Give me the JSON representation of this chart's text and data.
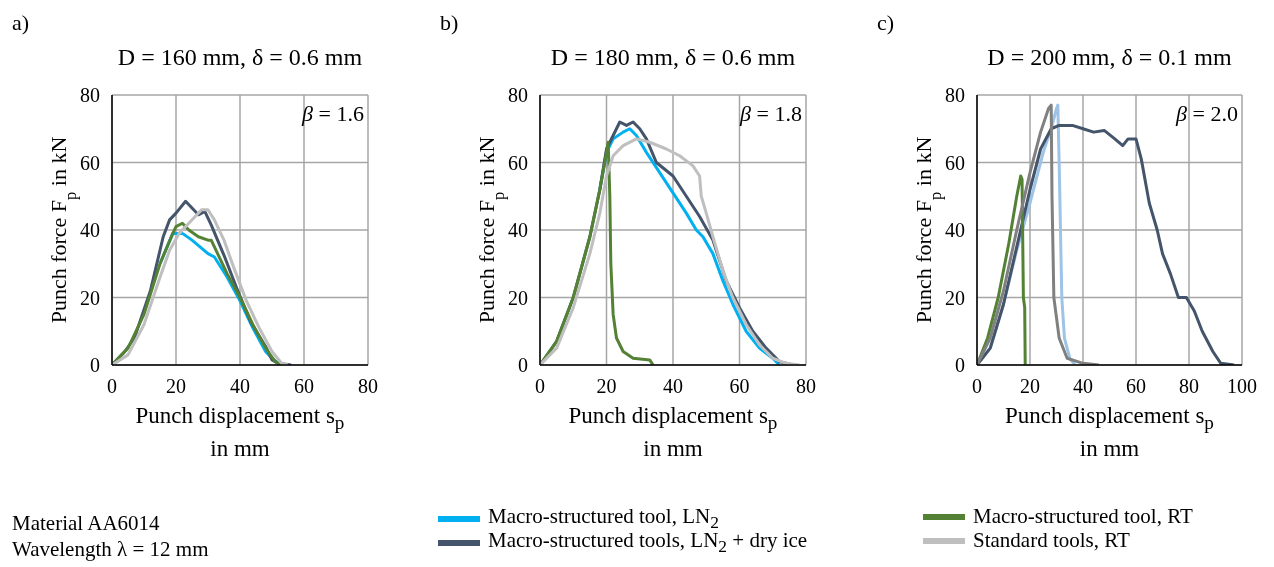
{
  "chart_data": [
    {
      "type": "line",
      "title": "D = 160 mm, δ = 0.6 mm",
      "xlabel": "Punch displacement s$_{p}$ in mm",
      "ylabel": "Punch force F$_{p}$ in kN",
      "xlim": [
        0,
        80
      ],
      "xticks": [
        0,
        20,
        40,
        60,
        80
      ],
      "ylim": [
        0,
        80
      ],
      "yticks": [
        0,
        20,
        40,
        60,
        80
      ],
      "grid": true,
      "legend": "bottom",
      "marker": "none",
      "line_style": "solid",
      "annotations": [
        "a)",
        "β = 1.6",
        "Material AA6014",
        "Wavelength λ = 12 mm"
      ],
      "series": [
        {
          "name": "Macro-structured tool, LN$_{2}$",
          "color": "#00b0f0",
          "x": [
            15,
            19,
            22,
            25,
            30,
            32,
            36,
            40,
            44,
            48,
            50,
            52
          ],
          "values": [
            30,
            39,
            39,
            37,
            33,
            32,
            26,
            19,
            11,
            4,
            2,
            0.5
          ]
        },
        {
          "name": "Macro-structured tools, LN$_{2}$ + dry ice",
          "color": "#44546a",
          "x": [
            0,
            4,
            7,
            12,
            16,
            18,
            20,
            23,
            27,
            29,
            31,
            35,
            39.5,
            43.5,
            48,
            50,
            52,
            56
          ],
          "values": [
            0,
            4,
            8,
            22,
            38,
            43,
            45,
            48.5,
            44.5,
            45.5,
            41.5,
            32.5,
            21.5,
            12.5,
            5.5,
            1.5,
            0.5,
            0
          ]
        },
        {
          "name": "Macro-structured tool, RT",
          "color": "#548235",
          "x": [
            0,
            5,
            10,
            15,
            19,
            20,
            22,
            24,
            27,
            30,
            31,
            33,
            36,
            40,
            44,
            48,
            51,
            53
          ],
          "values": [
            0,
            5,
            15,
            30,
            39,
            41,
            42,
            40,
            38,
            37,
            37,
            33,
            27,
            20,
            12,
            5,
            1,
            0
          ]
        },
        {
          "name": "Standard tools, RT",
          "color": "#bfbfbf",
          "x": [
            0,
            5,
            10,
            15,
            18,
            21,
            24,
            28,
            30,
            32,
            35,
            38,
            42,
            46,
            50,
            53,
            55
          ],
          "values": [
            0,
            3,
            12,
            26,
            34,
            39,
            42,
            46,
            46,
            43,
            37,
            29,
            19,
            11,
            4,
            0.5,
            0
          ]
        }
      ]
    },
    {
      "type": "line",
      "title": "D = 180 mm, δ = 0.6 mm",
      "xlabel": "Punch displacement s$_{p}$ in mm",
      "ylabel": "Punch force F$_{p}$ in kN",
      "xlim": [
        0,
        80
      ],
      "xticks": [
        0,
        20,
        40,
        60,
        80
      ],
      "ylim": [
        0,
        80
      ],
      "yticks": [
        0,
        20,
        40,
        60,
        80
      ],
      "grid": true,
      "marker": "none",
      "line_style": "solid",
      "annotations": [
        "b)",
        "β = 1.8"
      ],
      "series": [
        {
          "color": "#00b0f0",
          "x": [
            18,
            20,
            22,
            25,
            27,
            29,
            32,
            36,
            40,
            44,
            47,
            49,
            52,
            55,
            58,
            62,
            66,
            70,
            72
          ],
          "values": [
            52,
            63,
            67,
            69,
            70,
            68,
            63,
            57,
            51,
            45,
            40,
            38,
            33,
            25,
            18,
            10,
            5,
            2,
            0
          ]
        },
        {
          "color": "#44546a",
          "x": [
            0,
            5,
            10,
            15,
            18,
            20,
            22,
            24,
            26,
            28,
            30,
            32,
            35,
            40,
            44,
            48,
            52,
            54,
            56,
            60,
            64,
            68,
            70,
            72,
            74,
            76
          ],
          "values": [
            0,
            7,
            20,
            38,
            52,
            64,
            68,
            72,
            71,
            72,
            70,
            67,
            60,
            56,
            50,
            44,
            37,
            31,
            25,
            17,
            10,
            5,
            3,
            1,
            0.5,
            0
          ]
        },
        {
          "color": "#548235",
          "x": [
            0,
            5,
            10,
            15,
            18,
            20,
            20.5,
            21,
            21.3,
            22,
            23,
            25,
            28,
            33,
            34
          ],
          "values": [
            0,
            7,
            20,
            38,
            52,
            63,
            66,
            50,
            30,
            15,
            8,
            4,
            2,
            1.5,
            0
          ]
        },
        {
          "color": "#bfbfbf",
          "x": [
            0,
            5,
            10,
            15,
            18,
            20,
            22,
            25,
            29,
            33,
            38,
            42,
            46,
            48,
            48.5,
            50,
            52,
            55,
            58,
            62,
            66,
            70,
            74,
            78
          ],
          "values": [
            0,
            5,
            17,
            33,
            45,
            56,
            62,
            65,
            67,
            66,
            64,
            62,
            59,
            56,
            50,
            45,
            38,
            28,
            20,
            12,
            6,
            2,
            0.5,
            0
          ]
        }
      ]
    },
    {
      "type": "line",
      "title": "D = 200 mm, δ = 0.1 mm",
      "xlabel": "Punch displacement s$_{p}$ in mm",
      "ylabel": "Punch force F$_{p}$ in kN",
      "xlim": [
        0,
        100
      ],
      "xticks": [
        0,
        20,
        40,
        60,
        80,
        100
      ],
      "ylim": [
        0,
        80
      ],
      "yticks": [
        0,
        20,
        40,
        60,
        80
      ],
      "grid": true,
      "marker": "none",
      "line_style": "solid",
      "annotations": [
        "c)",
        "β = 2.0"
      ],
      "series": [
        {
          "color": "#9dc3e6",
          "x": [
            0,
            5,
            10,
            15,
            20,
            25,
            28,
            30,
            30.5,
            31,
            32,
            33,
            35,
            37
          ],
          "values": [
            0,
            5,
            18,
            34,
            48,
            63,
            70,
            76,
            77,
            60,
            20,
            8,
            2,
            0
          ]
        },
        {
          "color": "#44546a",
          "x": [
            0,
            5,
            10,
            15,
            20,
            24,
            28,
            31,
            36,
            40,
            44,
            48,
            52,
            55,
            57,
            60,
            62,
            65,
            68,
            70,
            73,
            76,
            79,
            82,
            85,
            89,
            92,
            97
          ],
          "values": [
            0,
            5,
            18,
            35,
            52,
            64,
            70,
            71,
            71,
            70,
            69,
            69.5,
            67,
            65,
            67,
            67,
            61,
            48,
            40,
            33,
            27,
            20,
            20,
            16,
            10,
            4,
            0.5,
            0
          ]
        },
        {
          "color": "#548235",
          "x": [
            0,
            4,
            8,
            12,
            15,
            16.5,
            17,
            17.5,
            18,
            18.2
          ],
          "values": [
            0,
            8,
            20,
            36,
            50,
            56,
            55,
            20,
            17,
            0
          ]
        },
        {
          "color": "#808080",
          "x": [
            0,
            5,
            10,
            15,
            20,
            24,
            27,
            28,
            28.3,
            29,
            31,
            34,
            40,
            46
          ],
          "values": [
            0,
            8,
            22,
            40,
            57,
            69,
            76,
            77,
            50,
            20,
            8,
            2,
            0.5,
            0
          ]
        }
      ]
    }
  ]
}
